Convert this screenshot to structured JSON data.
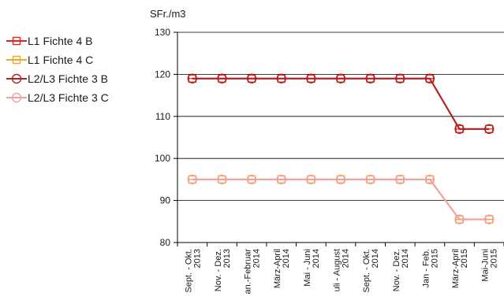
{
  "chart_data": {
    "type": "line",
    "unit_label": "SFr./m3",
    "categories": [
      [
        "Sept. - Okt.",
        "2013"
      ],
      [
        "Nov. - Dez.",
        "2013"
      ],
      [
        "an.-Februar",
        "2014"
      ],
      [
        "März-April",
        "2014"
      ],
      [
        "Mai - Juni",
        "2014"
      ],
      [
        "uli - August",
        "2014"
      ],
      [
        "Sept. - Okt.",
        "2014"
      ],
      [
        "Nov. - Dez.",
        "2014"
      ],
      [
        "Jan - Feb.",
        "2015"
      ],
      [
        "März-April",
        "2015"
      ],
      [
        "Mai-Juni",
        "2015"
      ]
    ],
    "ylim": [
      80,
      130
    ],
    "yticks": [
      80,
      90,
      100,
      110,
      120,
      130
    ],
    "grid": "horizontal",
    "legend_position": "left",
    "series": [
      {
        "name": "L1 Fichte 4 B",
        "color": "#e8231f",
        "marker": "square",
        "values": [
          119,
          119,
          119,
          119,
          119,
          119,
          119,
          119,
          119,
          107,
          107
        ]
      },
      {
        "name": "L1 Fichte 4 C",
        "color": "#f5a623",
        "marker": "square",
        "values": [
          95,
          95,
          95,
          95,
          95,
          95,
          95,
          95,
          95,
          85.5,
          85.5
        ]
      },
      {
        "name": "L2/L3 Fichte 3 B",
        "color": "#b22222",
        "marker": "circle",
        "values": [
          119,
          119,
          119,
          119,
          119,
          119,
          119,
          119,
          119,
          107,
          107
        ]
      },
      {
        "name": "L2/L3 Fichte 3 C",
        "color": "#f4a0a0",
        "marker": "circle",
        "values": [
          95,
          95,
          95,
          95,
          95,
          95,
          95,
          95,
          95,
          85.5,
          85.5
        ]
      }
    ]
  }
}
